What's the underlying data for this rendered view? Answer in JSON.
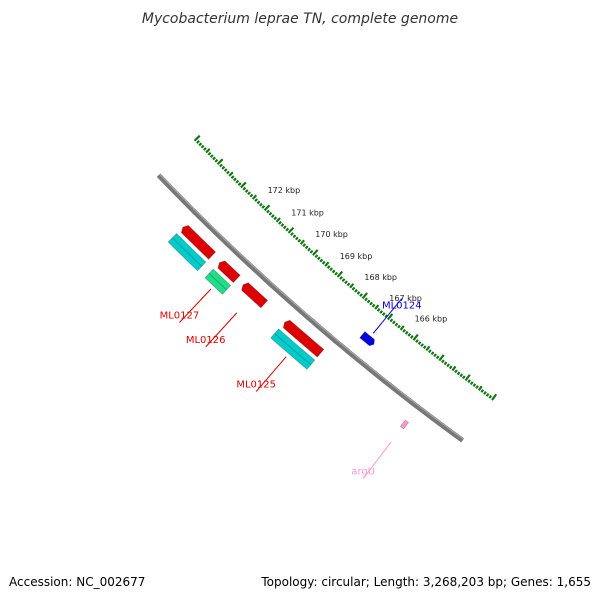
{
  "title": "Mycobacterium leprae TN, complete genome",
  "footer": {
    "accession": "Accession: NC_002677",
    "summary": "Topology: circular; Length: 3,268,203 bp; Genes: 1,655"
  },
  "ticks": [
    {
      "kb": 166,
      "label": "166 kbp"
    },
    {
      "kb": 167,
      "label": "167 kbp"
    },
    {
      "kb": 168,
      "label": "168 kbp"
    },
    {
      "kb": 169,
      "label": "169 kbp"
    },
    {
      "kb": 170,
      "label": "170 kbp"
    },
    {
      "kb": 171,
      "label": "171 kbp"
    },
    {
      "kb": 172,
      "label": "172 kbp"
    }
  ],
  "genes": [
    {
      "name": "argU",
      "start_kb": 164.6,
      "end_kb": 164.72,
      "strand": "+",
      "color": "#ff99cc"
    },
    {
      "name": "ML0124",
      "start_kb": 166.85,
      "end_kb": 167.3,
      "strand": "-",
      "color": "#0000dd"
    },
    {
      "name": "ML0125",
      "start_kb": 167.9,
      "end_kb": 169.3,
      "strand": "+",
      "color": "#dd0000",
      "cds_color": "#00cccc"
    },
    {
      "name": "ML0126",
      "start_kb": 170.1,
      "end_kb": 170.95,
      "strand": "+",
      "color": "#dd0000"
    },
    {
      "name": "ML0127",
      "start_kb": 171.2,
      "end_kb": 171.9,
      "strand": "+",
      "color": "#dd0000",
      "cds_color": "#22dd88"
    },
    {
      "name": "",
      "start_kb": 172.2,
      "end_kb": 173.4,
      "strand": "+",
      "color": "#dd0000",
      "cds_color": "#00cccc"
    }
  ],
  "colors": {
    "backbone": "#777777",
    "tick": "#117711"
  }
}
